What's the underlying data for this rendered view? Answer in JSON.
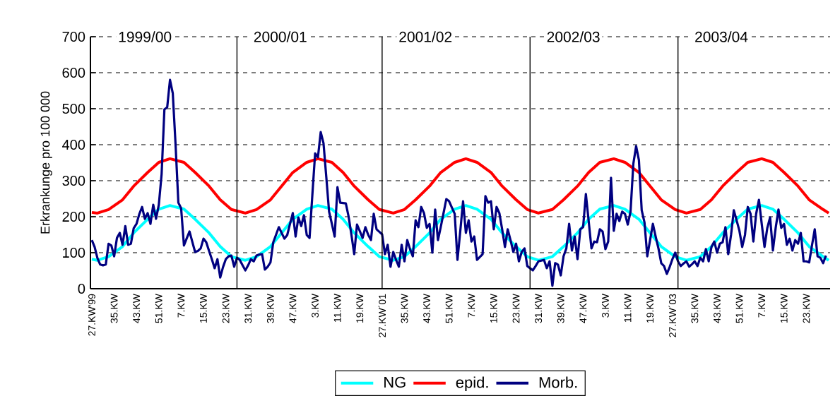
{
  "chart_data": {
    "type": "line",
    "ylabel": "Erkrankunge pro 100 000",
    "ylim": [
      0,
      700
    ],
    "yticks": [
      0,
      100,
      200,
      300,
      400,
      500,
      600,
      700
    ],
    "categories": [
      "27.KW'99",
      null,
      null,
      null,
      null,
      null,
      null,
      null,
      "35.KW",
      null,
      null,
      null,
      null,
      null,
      null,
      null,
      "43.KW",
      null,
      null,
      null,
      null,
      null,
      null,
      null,
      "51.KW",
      null,
      null,
      null,
      null,
      null,
      null,
      null,
      "7.KW",
      null,
      null,
      null,
      null,
      null,
      null,
      null,
      "15.KW",
      null,
      null,
      null,
      null,
      null,
      null,
      null,
      "23.KW",
      null,
      null,
      null,
      null,
      null,
      null,
      null,
      "31.KW",
      null,
      null,
      null,
      null,
      null,
      null,
      null,
      "39.KW",
      null,
      null,
      null,
      null,
      null,
      null,
      null,
      "47.KW",
      null,
      null,
      null,
      null,
      null,
      null,
      null,
      "3.KW",
      null,
      null,
      null,
      null,
      null,
      null,
      null,
      "11.KW",
      null,
      null,
      null,
      null,
      null,
      null,
      null,
      "19.KW",
      null,
      null,
      null,
      null,
      null,
      null,
      null,
      "27.KW´01",
      null,
      null,
      null,
      null,
      null,
      null,
      null,
      "35.KW",
      null,
      null,
      null,
      null,
      null,
      null,
      null,
      "43.KW",
      null,
      null,
      null,
      null,
      null,
      null,
      null,
      "51.KW",
      null,
      null,
      null,
      null,
      null,
      null,
      null,
      "7.KW",
      null,
      null,
      null,
      null,
      null,
      null,
      null,
      "15.KW",
      null,
      null,
      null,
      null,
      null,
      null,
      null,
      "23.KW",
      null,
      null,
      null,
      null,
      null,
      null,
      null,
      "31.KW",
      null,
      null,
      null,
      null,
      null,
      null,
      null,
      "39.KW",
      null,
      null,
      null,
      null,
      null,
      null,
      null,
      "47.KW",
      null,
      null,
      null,
      null,
      null,
      null,
      null,
      "3.KW",
      null,
      null,
      null,
      null,
      null,
      null,
      null,
      "11.KW",
      null,
      null,
      null,
      null,
      null,
      null,
      null,
      "19.KW",
      null,
      null,
      null,
      null,
      null,
      null,
      null,
      "27.KW´03",
      null,
      null,
      null,
      null,
      null,
      null,
      null,
      "35.KW",
      null,
      null,
      null,
      null,
      null,
      null,
      null,
      "43.KW",
      null,
      null,
      null,
      null,
      null,
      null,
      null,
      "51.KW",
      null,
      null,
      null,
      null,
      null,
      null,
      null,
      "7.KW",
      null,
      null,
      null,
      null,
      null,
      null,
      null,
      "15.KW",
      null,
      null,
      null,
      null,
      null,
      null,
      null,
      "23.KW",
      null,
      null,
      null,
      null,
      null,
      null,
      null,
      null
    ],
    "grid": "y",
    "legend": "bottom",
    "marker": "none",
    "line_style": "solid",
    "annotations": [
      "1999/00",
      "2000/01",
      "2001/02",
      "2002/03",
      "2003/04"
    ],
    "series": [
      {
        "name": "NG",
        "color": "#00ffff",
        "values": [
          82,
          null,
          79,
          null,
          null,
          null,
          89,
          null,
          null,
          null,
          null,
          117,
          null,
          null,
          null,
          155,
          null,
          null,
          null,
          null,
          193,
          null,
          null,
          null,
          221,
          null,
          null,
          null,
          231,
          null,
          null,
          null,
          null,
          221,
          null,
          null,
          null,
          193,
          null,
          null,
          null,
          null,
          155,
          null,
          null,
          null,
          117,
          null,
          null,
          null,
          89,
          null,
          null,
          null,
          null,
          79,
          null,
          null,
          null,
          89,
          null,
          null,
          null,
          null,
          117,
          null,
          null,
          null,
          155,
          null,
          null,
          null,
          193,
          null,
          null,
          null,
          null,
          221,
          null,
          null,
          null,
          231,
          null,
          null,
          null,
          null,
          221,
          null,
          null,
          null,
          193,
          null,
          null,
          null,
          155,
          null,
          null,
          null,
          null,
          117,
          null,
          null,
          null,
          89,
          null,
          null,
          null,
          null,
          79,
          null,
          null,
          null,
          89,
          null,
          null,
          null,
          117,
          null,
          null,
          null,
          null,
          155,
          null,
          null,
          null,
          193,
          null,
          null,
          null,
          null,
          221,
          null,
          null,
          null,
          231,
          null,
          null,
          null,
          221,
          null,
          null,
          null,
          null,
          193,
          null,
          null,
          null,
          155,
          null,
          null,
          null,
          null,
          117,
          null,
          null,
          null,
          89,
          null,
          null,
          null,
          79,
          null,
          null,
          null,
          null,
          89,
          null,
          null,
          null,
          117,
          null,
          null,
          null,
          null,
          155,
          null,
          null,
          null,
          193,
          null,
          null,
          null,
          221,
          null,
          null,
          null,
          null,
          231,
          null,
          null,
          null,
          221,
          null,
          null,
          null,
          null,
          193,
          null,
          null,
          null,
          155,
          null,
          null,
          null,
          117,
          null,
          null,
          null,
          null,
          89,
          null,
          null,
          null,
          79,
          null,
          null,
          null,
          null,
          89,
          null,
          null,
          null,
          117,
          null,
          null,
          null,
          155,
          null,
          null,
          null,
          null,
          193,
          null,
          null,
          null,
          221,
          null,
          null,
          null,
          null,
          231,
          null,
          null,
          null,
          221,
          null,
          null,
          null,
          193,
          null,
          null,
          null,
          null,
          155,
          null,
          null,
          null,
          117,
          null,
          null,
          null,
          null,
          89,
          null,
          79
        ]
      },
      {
        "name": "epid.",
        "color": "#ff0000",
        "values": [
          212,
          null,
          210,
          null,
          null,
          null,
          220,
          null,
          null,
          null,
          null,
          247,
          null,
          null,
          null,
          285,
          null,
          null,
          null,
          null,
          323,
          null,
          null,
          null,
          351,
          null,
          null,
          null,
          361,
          null,
          null,
          null,
          null,
          351,
          null,
          null,
          null,
          323,
          null,
          null,
          null,
          null,
          285,
          null,
          null,
          null,
          247,
          null,
          null,
          null,
          220,
          null,
          null,
          null,
          null,
          210,
          null,
          null,
          null,
          220,
          null,
          null,
          null,
          null,
          247,
          null,
          null,
          null,
          285,
          null,
          null,
          null,
          323,
          null,
          null,
          null,
          null,
          351,
          null,
          null,
          null,
          361,
          null,
          null,
          null,
          null,
          351,
          null,
          null,
          null,
          323,
          null,
          null,
          null,
          285,
          null,
          null,
          null,
          null,
          247,
          null,
          null,
          null,
          220,
          null,
          null,
          null,
          null,
          210,
          null,
          null,
          null,
          220,
          null,
          null,
          null,
          247,
          null,
          null,
          null,
          null,
          285,
          null,
          null,
          null,
          323,
          null,
          null,
          null,
          null,
          351,
          null,
          null,
          null,
          361,
          null,
          null,
          null,
          351,
          null,
          null,
          null,
          null,
          323,
          null,
          null,
          null,
          285,
          null,
          null,
          null,
          null,
          247,
          null,
          null,
          null,
          220,
          null,
          null,
          null,
          210,
          null,
          null,
          null,
          null,
          220,
          null,
          null,
          null,
          247,
          null,
          null,
          null,
          null,
          285,
          null,
          null,
          null,
          323,
          null,
          null,
          null,
          351,
          null,
          null,
          null,
          null,
          361,
          null,
          null,
          null,
          351,
          null,
          null,
          null,
          null,
          323,
          null,
          null,
          null,
          285,
          null,
          null,
          null,
          247,
          null,
          null,
          null,
          null,
          220,
          null,
          null,
          null,
          210,
          null,
          null,
          null,
          null,
          220,
          null,
          null,
          null,
          247,
          null,
          null,
          null,
          285,
          null,
          null,
          null,
          null,
          323,
          null,
          null,
          null,
          351,
          null,
          null,
          null,
          null,
          361,
          null,
          null,
          null,
          351,
          null,
          null,
          null,
          323,
          null,
          null,
          null,
          null,
          285,
          null,
          null,
          null,
          247,
          null,
          null,
          null,
          null,
          220,
          null,
          210
        ]
      },
      {
        "name": "Morb.",
        "color": "#000080",
        "values": [
          135,
          116,
          85,
          67,
          65,
          67,
          125,
          120,
          90,
          141,
          155,
          122,
          174,
          122,
          125,
          168,
          180,
          207,
          227,
          194,
          210,
          180,
          233,
          194,
          233,
          318,
          498,
          504,
          580,
          543,
          400,
          239,
          223,
          120,
          140,
          159,
          130,
          102,
          105,
          112,
          139,
          129,
          105,
          82,
          57,
          82,
          31,
          60,
          82,
          90,
          92,
          61,
          86,
          80,
          65,
          51,
          65,
          82,
          76,
          92,
          95,
          96,
          53,
          61,
          73,
          129,
          150,
          171,
          155,
          139,
          149,
          180,
          210,
          145,
          198,
          174,
          204,
          149,
          141,
          260,
          376,
          365,
          435,
          404,
          310,
          214,
          180,
          145,
          282,
          239,
          238,
          237,
          200,
          150,
          96,
          178,
          160,
          141,
          171,
          150,
          135,
          208,
          165,
          158,
          151,
          96,
          122,
          61,
          102,
          80,
          61,
          122,
          76,
          135,
          110,
          90,
          190,
          171,
          227,
          210,
          169,
          180,
          100,
          220,
          135,
          171,
          210,
          249,
          243,
          225,
          208,
          80,
          160,
          243,
          155,
          190,
          131,
          145,
          80,
          88,
          96,
          257,
          239,
          243,
          165,
          227,
          210,
          165,
          116,
          165,
          135,
          102,
          125,
          76,
          102,
          112,
          63,
          57,
          51,
          63,
          76,
          78,
          80,
          57,
          76,
          8,
          71,
          67,
          37,
          90,
          112,
          180,
          106,
          145,
          82,
          165,
          171,
          263,
          188,
          112,
          131,
          129,
          165,
          159,
          110,
          131,
          308,
          161,
          208,
          188,
          214,
          208,
          178,
          214,
          347,
          396,
          357,
          218,
          184,
          90,
          135,
          180,
          145,
          112,
          71,
          63,
          41,
          60,
          82,
          100,
          76,
          63,
          70,
          76,
          61,
          68,
          76,
          63,
          86,
          76,
          110,
          76,
          116,
          131,
          100,
          125,
          129,
          171,
          96,
          149,
          218,
          190,
          161,
          116,
          149,
          227,
          208,
          131,
          208,
          247,
          180,
          116,
          169,
          198,
          106,
          169,
          220,
          169,
          180,
          122,
          139,
          106,
          135,
          125,
          155,
          76,
          76,
          73,
          120,
          165,
          90,
          86,
          71,
          92,
          null
        ]
      }
    ]
  }
}
